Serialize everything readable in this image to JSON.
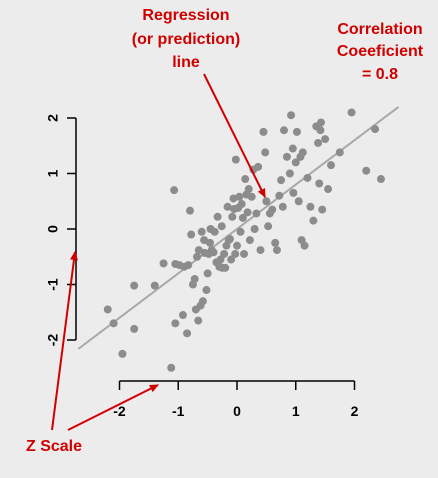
{
  "chart_data": {
    "type": "scatter",
    "title": "",
    "xlabel": "",
    "ylabel": "",
    "xlim": [
      -2.4,
      2.6
    ],
    "ylim": [
      -2.6,
      2.3
    ],
    "x_ticks": [
      -2,
      -1,
      0,
      1,
      2
    ],
    "x_tick_labels": [
      "-2",
      "-1",
      "0",
      "1",
      "2"
    ],
    "y_ticks": [
      -2,
      -1,
      0,
      1,
      2
    ],
    "y_tick_labels": [
      "-2",
      "-1",
      "0",
      "1",
      "2"
    ],
    "grid": false,
    "point_color": "#8c8c8c",
    "line_color": "#a8a8a8",
    "regression_line": {
      "slope": 0.8,
      "intercept": 0,
      "x_range": [
        -2.7,
        2.75
      ]
    },
    "points": [
      [
        -2.2,
        -1.45
      ],
      [
        -2.1,
        -1.7
      ],
      [
        -1.95,
        -2.25
      ],
      [
        -1.75,
        -1.8
      ],
      [
        -1.75,
        -1.02
      ],
      [
        -1.4,
        -1.02
      ],
      [
        -1.25,
        -0.62
      ],
      [
        -1.12,
        -2.5
      ],
      [
        -1.07,
        0.7
      ],
      [
        -1.05,
        -1.7
      ],
      [
        -1.05,
        -0.63
      ],
      [
        -0.98,
        -0.65
      ],
      [
        -0.92,
        -1.55
      ],
      [
        -0.9,
        -0.68
      ],
      [
        -0.85,
        -1.88
      ],
      [
        -0.83,
        -0.65
      ],
      [
        -0.8,
        0.33
      ],
      [
        -0.78,
        -0.1
      ],
      [
        -0.75,
        -1.0
      ],
      [
        -0.72,
        -0.9
      ],
      [
        -0.7,
        -1.45
      ],
      [
        -0.68,
        -0.5
      ],
      [
        -0.66,
        -1.65
      ],
      [
        -0.65,
        -0.38
      ],
      [
        -0.62,
        -1.38
      ],
      [
        -0.6,
        -0.05
      ],
      [
        -0.58,
        -1.3
      ],
      [
        -0.56,
        -0.2
      ],
      [
        -0.55,
        -0.43
      ],
      [
        -0.52,
        -1.1
      ],
      [
        -0.5,
        -0.8
      ],
      [
        -0.48,
        -0.45
      ],
      [
        -0.46,
        -0.25
      ],
      [
        -0.45,
        0.0
      ],
      [
        -0.43,
        -0.38
      ],
      [
        -0.4,
        -0.42
      ],
      [
        -0.38,
        -0.05
      ],
      [
        -0.35,
        -0.6
      ],
      [
        -0.33,
        0.22
      ],
      [
        -0.3,
        -0.68
      ],
      [
        -0.28,
        -0.55
      ],
      [
        -0.26,
        0.05
      ],
      [
        -0.25,
        -0.7
      ],
      [
        -0.22,
        -0.45
      ],
      [
        -0.2,
        -0.7
      ],
      [
        -0.18,
        -0.3
      ],
      [
        -0.16,
        0.4
      ],
      [
        -0.14,
        -0.2
      ],
      [
        -0.12,
        -0.18
      ],
      [
        -0.1,
        -0.55
      ],
      [
        -0.08,
        0.22
      ],
      [
        -0.06,
        0.55
      ],
      [
        -0.05,
        0.36
      ],
      [
        -0.03,
        -0.45
      ],
      [
        -0.02,
        1.25
      ],
      [
        0.0,
        -0.3
      ],
      [
        0.02,
        0.38
      ],
      [
        0.04,
        0.58
      ],
      [
        0.06,
        -0.05
      ],
      [
        0.08,
        0.45
      ],
      [
        0.1,
        0.2
      ],
      [
        0.12,
        -0.45
      ],
      [
        0.14,
        0.9
      ],
      [
        0.16,
        0.62
      ],
      [
        0.18,
        0.3
      ],
      [
        0.2,
        0.72
      ],
      [
        0.22,
        -0.2
      ],
      [
        0.25,
        0.58
      ],
      [
        0.28,
        1.07
      ],
      [
        0.3,
        0.0
      ],
      [
        0.33,
        0.28
      ],
      [
        0.36,
        1.12
      ],
      [
        0.4,
        -0.38
      ],
      [
        0.45,
        1.75
      ],
      [
        0.48,
        1.38
      ],
      [
        0.5,
        0.5
      ],
      [
        0.53,
        0.05
      ],
      [
        0.56,
        0.28
      ],
      [
        0.6,
        0.35
      ],
      [
        0.65,
        -0.25
      ],
      [
        0.68,
        -0.38
      ],
      [
        0.72,
        0.6
      ],
      [
        0.75,
        0.88
      ],
      [
        0.78,
        0.4
      ],
      [
        0.8,
        1.78
      ],
      [
        0.85,
        1.3
      ],
      [
        0.9,
        1.0
      ],
      [
        0.92,
        2.05
      ],
      [
        0.95,
        1.45
      ],
      [
        0.96,
        0.65
      ],
      [
        1.0,
        1.2
      ],
      [
        1.02,
        1.75
      ],
      [
        1.05,
        0.5
      ],
      [
        1.08,
        1.3
      ],
      [
        1.1,
        -0.2
      ],
      [
        1.12,
        1.38
      ],
      [
        1.15,
        -0.3
      ],
      [
        1.2,
        0.92
      ],
      [
        1.25,
        0.4
      ],
      [
        1.3,
        0.15
      ],
      [
        1.35,
        1.85
      ],
      [
        1.38,
        1.55
      ],
      [
        1.4,
        0.82
      ],
      [
        1.42,
        1.78
      ],
      [
        1.43,
        1.92
      ],
      [
        1.45,
        0.35
      ],
      [
        1.5,
        1.62
      ],
      [
        1.55,
        0.72
      ],
      [
        1.6,
        1.15
      ],
      [
        1.75,
        1.38
      ],
      [
        1.95,
        2.1
      ],
      [
        2.2,
        1.05
      ],
      [
        2.35,
        1.8
      ],
      [
        2.45,
        0.9
      ]
    ],
    "annotations": {
      "regression": [
        "Regression",
        "(or prediction)",
        "line"
      ],
      "correlation": [
        "Correlation",
        "Coeeficient",
        "= 0.8"
      ],
      "zscale": "Z Scale"
    }
  }
}
